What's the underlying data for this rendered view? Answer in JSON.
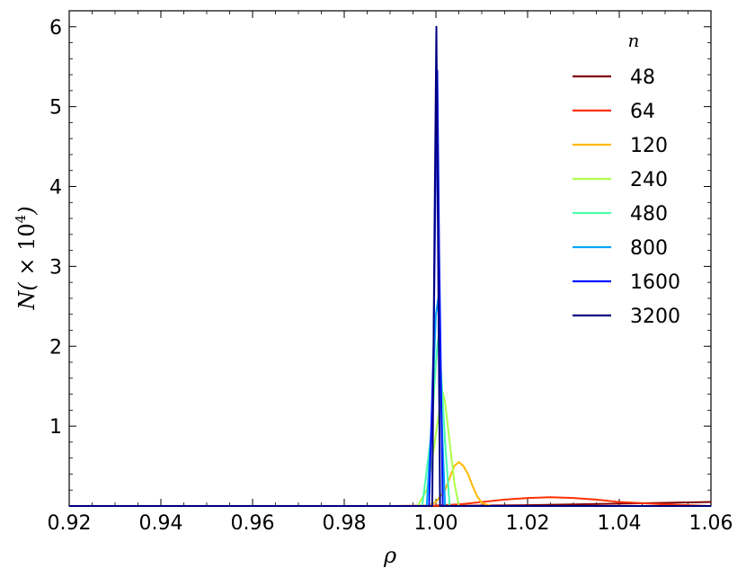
{
  "chart_data": {
    "type": "line",
    "xlabel": "ρ",
    "ylabel": "N(×10⁴)",
    "ylabel_parts": {
      "main": "N(",
      "times": "×",
      "base": "10",
      "exp": "4",
      "close": ")"
    },
    "xlim": [
      0.92,
      1.06
    ],
    "ylim": [
      0,
      6.2
    ],
    "x_ticks": [
      0.92,
      0.94,
      0.96,
      0.98,
      1.0,
      1.02,
      1.04,
      1.06
    ],
    "x_tick_labels": [
      "0.92",
      "0.94",
      "0.96",
      "0.98",
      "1.00",
      "1.02",
      "1.04",
      "1.06"
    ],
    "y_ticks": [
      1,
      2,
      3,
      4,
      5,
      6
    ],
    "y_tick_labels": [
      "1",
      "2",
      "3",
      "4",
      "5",
      "6"
    ],
    "grid": false,
    "legend_title": "n",
    "legend_position": "top-right",
    "series": [
      {
        "name": "48",
        "color": "#800000",
        "x": [
          0.92,
          0.99,
          1.0,
          1.01,
          1.02,
          1.03,
          1.04,
          1.05,
          1.06
        ],
        "y": [
          0.0,
          0.0,
          0.0,
          0.005,
          0.01,
          0.02,
          0.03,
          0.04,
          0.05
        ]
      },
      {
        "name": "64",
        "color": "#ff3000",
        "x": [
          0.92,
          0.98,
          0.99,
          1.0,
          1.005,
          1.01,
          1.015,
          1.02,
          1.025,
          1.03,
          1.035,
          1.04,
          1.05,
          1.06
        ],
        "y": [
          0.0,
          0.0,
          0.0,
          0.005,
          0.02,
          0.05,
          0.08,
          0.1,
          0.11,
          0.1,
          0.08,
          0.05,
          0.02,
          0.0
        ]
      },
      {
        "name": "120",
        "color": "#ffb900",
        "x": [
          0.92,
          0.99,
          0.998,
          1.0,
          1.002,
          1.003,
          1.004,
          1.005,
          1.006,
          1.007,
          1.008,
          1.009,
          1.01,
          1.012,
          1.06
        ],
        "y": [
          0.0,
          0.0,
          0.0,
          0.05,
          0.2,
          0.35,
          0.5,
          0.55,
          0.5,
          0.4,
          0.25,
          0.12,
          0.04,
          0.0,
          0.0
        ]
      },
      {
        "name": "240",
        "color": "#aeff49",
        "x": [
          0.92,
          0.996,
          0.998,
          0.999,
          1.0,
          1.001,
          1.0015,
          1.002,
          1.003,
          1.004,
          1.005,
          1.06
        ],
        "y": [
          0.0,
          0.0,
          0.2,
          0.5,
          0.9,
          1.3,
          1.42,
          1.3,
          0.8,
          0.3,
          0.0,
          0.0
        ]
      },
      {
        "name": "480",
        "color": "#49ffad",
        "x": [
          0.92,
          0.997,
          0.999,
          1.0,
          1.0005,
          1.001,
          1.002,
          1.003,
          1.06
        ],
        "y": [
          0.0,
          0.0,
          0.9,
          1.8,
          2.1,
          1.8,
          0.8,
          0.0,
          0.0
        ]
      },
      {
        "name": "800",
        "color": "#00a4ff",
        "x": [
          0.92,
          0.998,
          0.999,
          1.0,
          1.0005,
          1.001,
          1.002,
          1.06
        ],
        "y": [
          0.0,
          0.0,
          1.0,
          2.4,
          2.6,
          1.5,
          0.0,
          0.0
        ]
      },
      {
        "name": "1600",
        "color": "#0014ff",
        "x": [
          0.92,
          0.9985,
          0.9995,
          1.0,
          1.0003,
          1.0007,
          1.0015,
          1.06
        ],
        "y": [
          0.0,
          0.0,
          2.0,
          4.5,
          5.45,
          3.2,
          0.0,
          0.0
        ]
      },
      {
        "name": "3200",
        "color": "#000080",
        "x": [
          0.92,
          0.9992,
          0.9997,
          1.0001,
          1.0005,
          1.0009,
          1.06
        ],
        "y": [
          0.0,
          0.0,
          3.5,
          6.0,
          3.0,
          0.0,
          0.0
        ]
      }
    ]
  }
}
